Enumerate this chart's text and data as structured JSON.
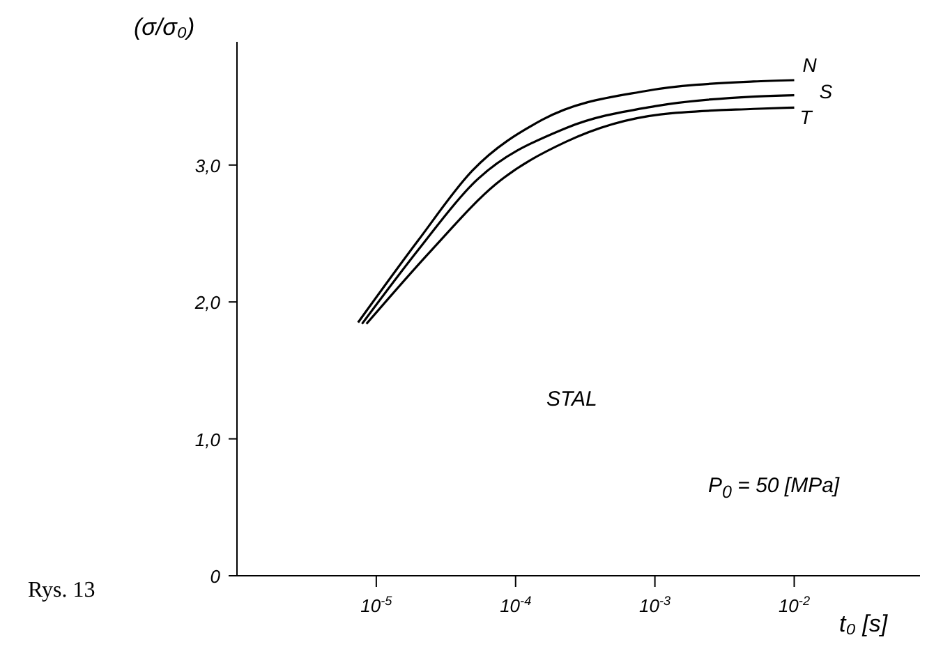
{
  "chart_data": {
    "type": "line",
    "xlabel": "t₀ [s]",
    "ylabel": "(σ/σ₀)",
    "log": "x",
    "xlim": [
      1e-06,
      0.08
    ],
    "xticks": [
      {
        "value": 1e-05,
        "label": "10$^{-5}$"
      },
      {
        "value": 0.0001,
        "label": "10$^{-4}$"
      },
      {
        "value": 0.001,
        "label": "10$^{-3}$"
      },
      {
        "value": 0.01,
        "label": "10$^{-2}$"
      }
    ],
    "ylim": [
      0,
      3.9
    ],
    "yticks": [
      0,
      {
        "value": 1,
        "label": "1,0"
      },
      {
        "value": 2,
        "label": "2,0"
      },
      {
        "value": 3,
        "label": "3,0"
      }
    ],
    "grid": false,
    "legend": false,
    "marker": "none",
    "line_style": "solid",
    "series": [
      {
        "name": "N",
        "color": "#000000",
        "x": [
          7.4e-06,
          2e-05,
          4.9e-05,
          0.000155,
          0.00085,
          0.0051,
          0.01
        ],
        "values": [
          1.85,
          2.45,
          2.96,
          3.33,
          3.54,
          3.61,
          3.62
        ]
      },
      {
        "name": "S",
        "color": "#000000",
        "x": [
          7.9e-06,
          2e-05,
          4.9e-05,
          0.00023,
          0.001,
          0.0051,
          0.01
        ],
        "values": [
          1.84,
          2.38,
          2.86,
          3.27,
          3.43,
          3.5,
          3.51
        ]
      },
      {
        "name": "T",
        "color": "#000000",
        "x": [
          8.5e-06,
          2.5e-05,
          7.2e-05,
          0.00023,
          0.0011,
          0.0051,
          0.01
        ],
        "values": [
          1.84,
          2.38,
          2.86,
          3.17,
          3.37,
          3.41,
          3.42
        ]
      }
    ],
    "annotations": [
      "STAL",
      "P$_{0}$ = 50 [MPa]",
      "Rys. 13"
    ]
  }
}
